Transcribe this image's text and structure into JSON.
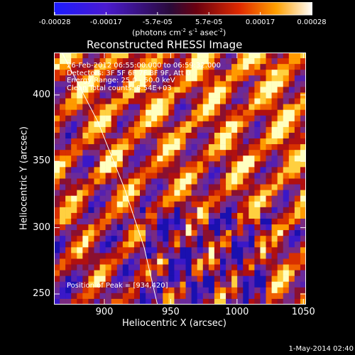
{
  "chart_data": {
    "type": "heatmap",
    "title": "Reconstructed RHESSI Image",
    "xlabel": "Heliocentric X (arcsec)",
    "ylabel": "Heliocentric Y (arcsec)",
    "xlim": [
      862,
      1052
    ],
    "ylim": [
      242,
      432
    ],
    "x_ticks": [
      900,
      950,
      1000,
      1050
    ],
    "y_ticks": [
      250,
      300,
      350,
      400
    ],
    "colormap": "rhessi-hot (blue-purple-red-orange-yellow-white)",
    "colorbar": {
      "label": "(photons cm",
      "label_sup1": "-2",
      "label_mid1": " s",
      "label_sup2": "-1",
      "label_mid2": " asec",
      "label_sup3": "-2",
      "label_end": ")",
      "range": [
        -0.00028,
        0.00028
      ],
      "ticks": [
        "-0.00028",
        "-0.00017",
        "-5.7e-05",
        "5.7e-05",
        "0.00017",
        "0.00028"
      ]
    },
    "annotations": [
      "26-Feb-2012 06:55:00.000 to 06:59:32.000",
      "Detectors: 3F 5F 6F 7F 8F 9F, Att 0",
      "Energy Range: 25.0 - 50.0 keV",
      "Clean    Total counts: 8.54E+03"
    ],
    "peak_label": "Position of Peak = [934,420]",
    "limb_curve": [
      [
        868,
        432
      ],
      [
        895,
        380
      ],
      [
        915,
        330
      ],
      [
        930,
        285
      ],
      [
        940,
        242
      ]
    ]
  },
  "footer": {
    "date": "1-May-2014 02:40"
  }
}
